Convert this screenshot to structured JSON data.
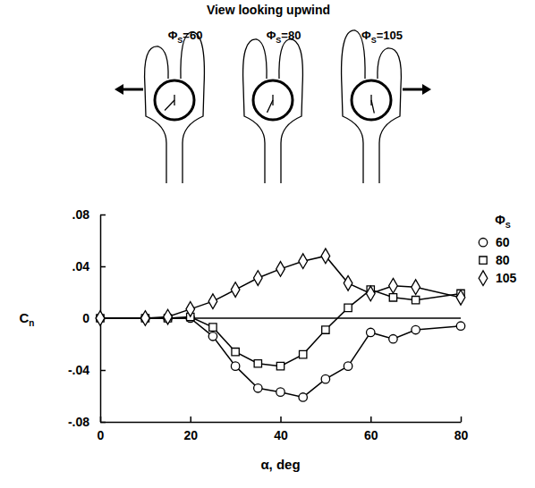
{
  "figure": {
    "heading": "View looking upwind",
    "diagram_labels": [
      "ΦS=60",
      "ΦS=80",
      "ΦS=105"
    ]
  },
  "chart_data": {
    "type": "line",
    "x_label": "α, deg",
    "y_label": "Cn",
    "legend_title": "ΦS",
    "legend": "right",
    "xlim": [
      0,
      80
    ],
    "xticks": [
      0,
      20,
      40,
      60,
      80
    ],
    "ylim": [
      -0.08,
      0.08
    ],
    "yticks": [
      {
        "value": -0.08,
        "label": "-.08"
      },
      {
        "value": -0.04,
        "label": "-.04"
      },
      0,
      {
        "value": 0.04,
        "label": ".04"
      },
      {
        "value": 0.08,
        "label": ".08"
      }
    ],
    "series": [
      {
        "name": "60",
        "color": "#000000",
        "marker": "circle",
        "x": [
          0,
          10,
          15,
          20,
          25,
          30,
          35,
          40,
          45,
          50,
          55,
          60,
          65,
          70,
          80
        ],
        "values": [
          0,
          0,
          0,
          0,
          -0.014,
          -0.037,
          -0.054,
          -0.057,
          -0.061,
          -0.047,
          -0.037,
          -0.011,
          -0.016,
          -0.009,
          -0.006
        ]
      },
      {
        "name": "80",
        "color": "#000000",
        "marker": "square",
        "x": [
          0,
          10,
          15,
          20,
          25,
          30,
          35,
          40,
          45,
          50,
          55,
          60,
          65,
          70,
          80
        ],
        "values": [
          0,
          0,
          0,
          0.001,
          -0.007,
          -0.026,
          -0.035,
          -0.037,
          -0.028,
          -0.009,
          0.008,
          0.022,
          0.016,
          0.014,
          0.019
        ]
      },
      {
        "name": "105",
        "color": "#000000",
        "marker": "diamond",
        "x": [
          0,
          10,
          15,
          20,
          25,
          30,
          35,
          40,
          45,
          50,
          55,
          60,
          65,
          70,
          80
        ],
        "values": [
          0,
          0,
          0.001,
          0.007,
          0.013,
          0.022,
          0.031,
          0.038,
          0.044,
          0.048,
          0.027,
          0.019,
          0.025,
          0.024,
          0.016
        ]
      }
    ]
  }
}
